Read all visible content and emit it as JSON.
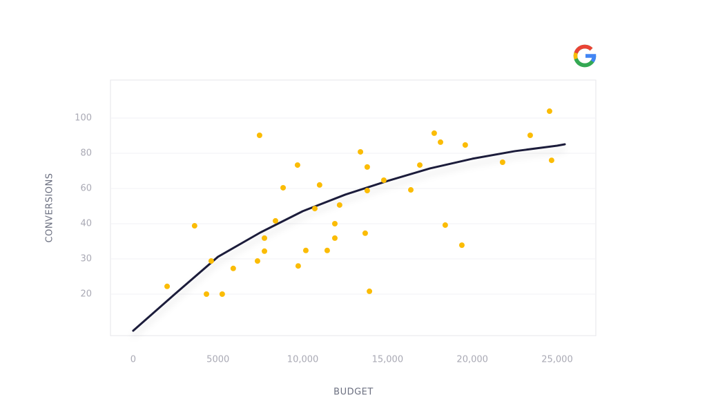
{
  "chart_data": {
    "type": "scatter",
    "x_label": "BUDGET",
    "y_label": "CONVERSIONS",
    "xlim": [
      -1340,
      27280
    ],
    "ylim": [
      8.2,
      121.6
    ],
    "xticks": [
      0,
      5000,
      {
        "value": 10000,
        "label": "10,000"
      },
      {
        "value": 15000,
        "label": "15,000"
      },
      {
        "value": 20000,
        "label": "20,000"
      },
      {
        "value": 25000,
        "label": "25,000"
      }
    ],
    "yticks": [
      20,
      30,
      40,
      60,
      80,
      100
    ],
    "grid": true,
    "series": [
      {
        "type": "scatter",
        "color": "#fbbc05",
        "x": [
          2000,
          3620,
          4320,
          4600,
          5250,
          5900,
          7330,
          7450,
          7740,
          7740,
          8390,
          8840,
          9690,
          9730,
          10180,
          10710,
          10990,
          11440,
          11890,
          11890,
          12170,
          13400,
          13680,
          13800,
          13800,
          13930,
          14780,
          16370,
          16900,
          17750,
          18120,
          18400,
          19380,
          19580,
          21780,
          23410,
          24550,
          24670
        ],
        "values": [
          22.2,
          39.4,
          20,
          29.4,
          20,
          27.3,
          29.4,
          90.2,
          35.9,
          32.2,
          41.6,
          60.4,
          73.3,
          28,
          32.4,
          48.6,
          62,
          32.4,
          40,
          35.9,
          50.6,
          80.8,
          37.3,
          72.2,
          58.8,
          20.8,
          64.7,
          59.2,
          73.3,
          91.4,
          86.3,
          39.6,
          33.9,
          84.7,
          74.9,
          90.2,
          103.9,
          76
        ]
      },
      {
        "type": "line",
        "color": "#1b1f3b",
        "x": [
          0,
          2500,
          5000,
          7500,
          10000,
          12500,
          15000,
          17500,
          20000,
          22500,
          25000,
          25450
        ],
        "values": [
          9.6,
          20.2,
          30.6,
          37.5,
          47.1,
          56.5,
          64.3,
          71.4,
          76.9,
          81.2,
          84.3,
          85.1
        ]
      }
    ]
  }
}
